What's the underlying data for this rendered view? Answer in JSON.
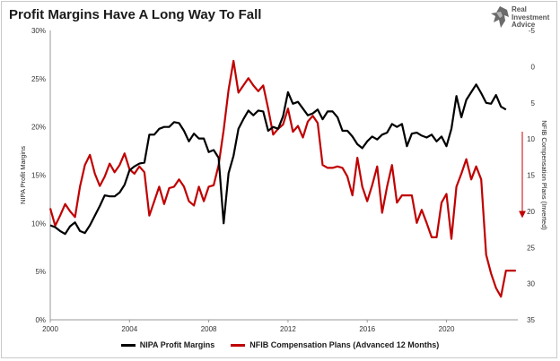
{
  "title": "Profit Margins Have A Long Way To Fall",
  "logo": {
    "line1": "Real",
    "line2": "Investment",
    "line3": "Advice"
  },
  "legend": [
    {
      "label": "NIPA Profit Margins",
      "color": "#000000"
    },
    {
      "label": "NFIB Compensation Plans (Advanced 12 Months)",
      "color": "#c00000"
    }
  ],
  "chart_data": {
    "type": "line",
    "xlim": [
      2000,
      2023.6
    ],
    "x_ticks": [
      "2000",
      "2004",
      "2008",
      "2012",
      "2016",
      "2020"
    ],
    "y_left": {
      "label": "NIPA Profit Margins",
      "lim": [
        0,
        30
      ],
      "ticks": [
        "0%",
        "5%",
        "10%",
        "15%",
        "20%",
        "25%",
        "30%"
      ]
    },
    "y_right": {
      "label": "NFIB Compensation Plans (Inverted)",
      "lim": [
        -5,
        35
      ],
      "inverted": true,
      "ticks": [
        "-5",
        "0",
        "5",
        "10",
        "15",
        "20",
        "25",
        "30",
        "35"
      ]
    },
    "series": [
      {
        "name": "NIPA Profit Margins",
        "axis": "left",
        "color": "#000000",
        "points": [
          [
            2000,
            9.8
          ],
          [
            2000.25,
            9.6
          ],
          [
            2000.5,
            9.2
          ],
          [
            2000.75,
            8.9
          ],
          [
            2001,
            9.7
          ],
          [
            2001.25,
            10.1
          ],
          [
            2001.5,
            9.2
          ],
          [
            2001.75,
            9.0
          ],
          [
            2002,
            9.8
          ],
          [
            2002.25,
            10.8
          ],
          [
            2002.5,
            11.8
          ],
          [
            2002.75,
            12.9
          ],
          [
            2003,
            12.8
          ],
          [
            2003.25,
            12.8
          ],
          [
            2003.5,
            13.2
          ],
          [
            2003.75,
            14.0
          ],
          [
            2004,
            15.5
          ],
          [
            2004.25,
            15.9
          ],
          [
            2004.5,
            16.2
          ],
          [
            2004.75,
            16.3
          ],
          [
            2005,
            19.2
          ],
          [
            2005.25,
            19.2
          ],
          [
            2005.5,
            19.8
          ],
          [
            2005.75,
            20.0
          ],
          [
            2006,
            20.0
          ],
          [
            2006.25,
            20.5
          ],
          [
            2006.5,
            20.4
          ],
          [
            2006.75,
            19.6
          ],
          [
            2007,
            18.5
          ],
          [
            2007.25,
            19.3
          ],
          [
            2007.5,
            18.8
          ],
          [
            2007.75,
            18.8
          ],
          [
            2008,
            17.4
          ],
          [
            2008.25,
            17.6
          ],
          [
            2008.5,
            16.8
          ],
          [
            2008.75,
            10.0
          ],
          [
            2009,
            15.2
          ],
          [
            2009.25,
            17.0
          ],
          [
            2009.5,
            19.8
          ],
          [
            2009.75,
            20.8
          ],
          [
            2010,
            21.7
          ],
          [
            2010.25,
            21.2
          ],
          [
            2010.5,
            21.7
          ],
          [
            2010.75,
            21.6
          ],
          [
            2011,
            19.6
          ],
          [
            2011.25,
            20.0
          ],
          [
            2011.5,
            19.8
          ],
          [
            2011.75,
            21.1
          ],
          [
            2012,
            23.6
          ],
          [
            2012.25,
            22.4
          ],
          [
            2012.5,
            22.6
          ],
          [
            2012.75,
            21.9
          ],
          [
            2013,
            21.2
          ],
          [
            2013.25,
            21.4
          ],
          [
            2013.5,
            21.8
          ],
          [
            2013.75,
            20.8
          ],
          [
            2014,
            21.6
          ],
          [
            2014.25,
            21.6
          ],
          [
            2014.5,
            21.0
          ],
          [
            2014.75,
            19.6
          ],
          [
            2015,
            19.6
          ],
          [
            2015.25,
            19.0
          ],
          [
            2015.5,
            18.2
          ],
          [
            2015.75,
            17.8
          ],
          [
            2016,
            18.5
          ],
          [
            2016.25,
            19.0
          ],
          [
            2016.5,
            18.7
          ],
          [
            2016.75,
            19.2
          ],
          [
            2017,
            19.4
          ],
          [
            2017.25,
            20.3
          ],
          [
            2017.5,
            20.0
          ],
          [
            2017.75,
            20.3
          ],
          [
            2018,
            18.0
          ],
          [
            2018.25,
            19.3
          ],
          [
            2018.5,
            19.4
          ],
          [
            2018.75,
            19.1
          ],
          [
            2019,
            18.9
          ],
          [
            2019.25,
            19.2
          ],
          [
            2019.5,
            18.5
          ],
          [
            2019.75,
            19.0
          ],
          [
            2020,
            18.0
          ],
          [
            2020.25,
            19.8
          ],
          [
            2020.5,
            23.2
          ],
          [
            2020.75,
            21.0
          ],
          [
            2021,
            22.8
          ],
          [
            2021.25,
            23.6
          ],
          [
            2021.5,
            24.4
          ],
          [
            2021.75,
            23.5
          ],
          [
            2022,
            22.5
          ],
          [
            2022.25,
            22.4
          ],
          [
            2022.5,
            23.3
          ],
          [
            2022.75,
            22.1
          ],
          [
            2023,
            21.8
          ]
        ]
      },
      {
        "name": "NFIB Compensation Plans (Advanced 12 Months)",
        "axis": "right",
        "color": "#c00000",
        "points": [
          [
            2000,
            19.6
          ],
          [
            2000.25,
            22.0
          ],
          [
            2000.5,
            20.6
          ],
          [
            2000.75,
            19.0
          ],
          [
            2001,
            20.0
          ],
          [
            2001.25,
            20.8
          ],
          [
            2001.5,
            16.6
          ],
          [
            2001.75,
            13.6
          ],
          [
            2002,
            12.2
          ],
          [
            2002.25,
            14.8
          ],
          [
            2002.5,
            16.5
          ],
          [
            2002.75,
            15.2
          ],
          [
            2003,
            13.4
          ],
          [
            2003.25,
            14.6
          ],
          [
            2003.5,
            13.6
          ],
          [
            2003.75,
            12.0
          ],
          [
            2004,
            14.2
          ],
          [
            2004.25,
            14.8
          ],
          [
            2004.5,
            13.8
          ],
          [
            2004.75,
            14.6
          ],
          [
            2005,
            20.6
          ],
          [
            2005.25,
            18.6
          ],
          [
            2005.5,
            16.6
          ],
          [
            2005.75,
            19.0
          ],
          [
            2006,
            16.8
          ],
          [
            2006.25,
            16.6
          ],
          [
            2006.5,
            15.6
          ],
          [
            2006.75,
            16.6
          ],
          [
            2007,
            18.6
          ],
          [
            2007.25,
            19.2
          ],
          [
            2007.5,
            16.6
          ],
          [
            2007.75,
            18.6
          ],
          [
            2008,
            16.6
          ],
          [
            2008.25,
            16.4
          ],
          [
            2008.5,
            13.6
          ],
          [
            2008.75,
            8.8
          ],
          [
            2009,
            3.2
          ],
          [
            2009.25,
            -0.8
          ],
          [
            2009.5,
            3.6
          ],
          [
            2009.75,
            2.6
          ],
          [
            2010,
            1.6
          ],
          [
            2010.25,
            2.6
          ],
          [
            2010.5,
            3.4
          ],
          [
            2010.75,
            2.6
          ],
          [
            2011,
            5.8
          ],
          [
            2011.25,
            9.4
          ],
          [
            2011.5,
            8.6
          ],
          [
            2011.75,
            8.0
          ],
          [
            2012,
            5.8
          ],
          [
            2012.25,
            9.0
          ],
          [
            2012.5,
            8.2
          ],
          [
            2012.75,
            9.8
          ],
          [
            2013,
            7.6
          ],
          [
            2013.25,
            6.8
          ],
          [
            2013.5,
            7.8
          ],
          [
            2013.75,
            13.6
          ],
          [
            2014,
            14.0
          ],
          [
            2014.25,
            14.0
          ],
          [
            2014.5,
            13.8
          ],
          [
            2014.75,
            14.0
          ],
          [
            2015,
            15.2
          ],
          [
            2015.25,
            17.8
          ],
          [
            2015.5,
            12.6
          ],
          [
            2015.75,
            16.6
          ],
          [
            2016,
            18.6
          ],
          [
            2016.25,
            16.4
          ],
          [
            2016.5,
            13.8
          ],
          [
            2016.75,
            20.2
          ],
          [
            2017,
            16.6
          ],
          [
            2017.25,
            13.6
          ],
          [
            2017.5,
            18.8
          ],
          [
            2017.75,
            17.8
          ],
          [
            2018,
            17.8
          ],
          [
            2018.25,
            17.8
          ],
          [
            2018.5,
            21.6
          ],
          [
            2018.75,
            19.8
          ],
          [
            2019,
            21.6
          ],
          [
            2019.25,
            23.6
          ],
          [
            2019.5,
            23.6
          ],
          [
            2019.75,
            18.8
          ],
          [
            2020,
            17.6
          ],
          [
            2020.25,
            23.8
          ],
          [
            2020.5,
            16.6
          ],
          [
            2020.75,
            14.8
          ],
          [
            2021,
            12.8
          ],
          [
            2021.25,
            15.6
          ],
          [
            2021.5,
            13.8
          ],
          [
            2021.75,
            15.6
          ],
          [
            2022,
            26.0
          ],
          [
            2022.25,
            28.6
          ],
          [
            2022.5,
            30.6
          ],
          [
            2022.75,
            31.8
          ],
          [
            2023,
            28.2
          ],
          [
            2023.25,
            28.2
          ],
          [
            2023.5,
            28.2
          ]
        ]
      }
    ],
    "annotation": {
      "type": "arrow",
      "color": "#c00000",
      "axis": "right",
      "from": 9,
      "to": 20.8
    }
  }
}
